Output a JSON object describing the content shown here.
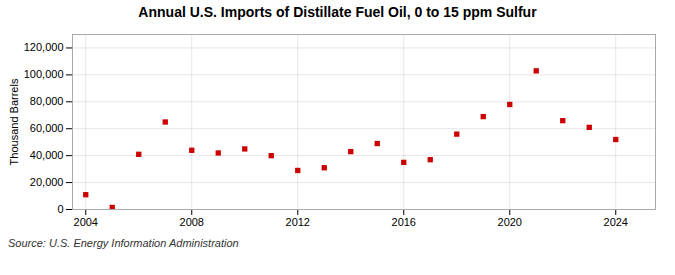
{
  "chart_data": {
    "type": "scatter",
    "title": "Annual U.S. Imports of Distillate Fuel Oil, 0 to 15 ppm Sulfur",
    "ylabel": "Thousand Barrels",
    "annotations": [
      "Source: U.S. Energy Information Administration"
    ],
    "x": [
      2004,
      2005,
      2006,
      2007,
      2008,
      2009,
      2010,
      2011,
      2012,
      2013,
      2014,
      2015,
      2016,
      2017,
      2018,
      2019,
      2020,
      2021,
      2022,
      2023,
      2024
    ],
    "values": [
      11000,
      1500,
      41000,
      65000,
      44000,
      42000,
      45000,
      40000,
      29000,
      31000,
      43000,
      49000,
      35000,
      37000,
      56000,
      69000,
      78000,
      103000,
      66000,
      61000,
      52000
    ],
    "color": "#cc0000",
    "marker": "square",
    "xlim": [
      2003.5,
      2025.5
    ],
    "ylim": [
      0,
      130000
    ],
    "xticks": [
      2004,
      2008,
      2012,
      2016,
      2020,
      2024
    ],
    "yticks": [
      0,
      {
        "value": 20000,
        "label": "20,000"
      },
      {
        "value": 40000,
        "label": "40,000"
      },
      {
        "value": 60000,
        "label": "60,000"
      },
      {
        "value": 80000,
        "label": "80,000"
      },
      {
        "value": 100000,
        "label": "100,000"
      },
      {
        "value": 120000,
        "label": "120,000"
      }
    ],
    "grid": true
  }
}
